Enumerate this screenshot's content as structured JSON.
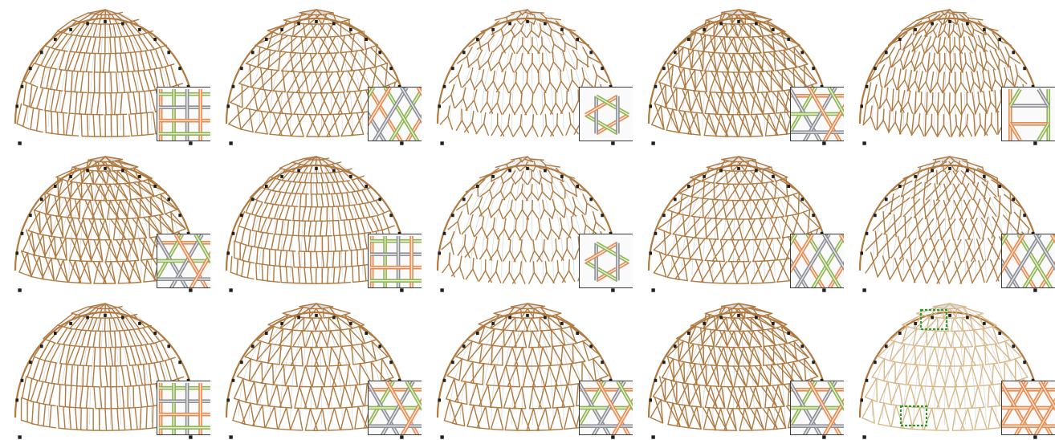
{
  "figure": {
    "rows": 3,
    "cols": 5,
    "panels": [
      {
        "id": "r1c1",
        "pattern": "basket"
      },
      {
        "id": "r1c2",
        "pattern": "pinwheel"
      },
      {
        "id": "r1c3",
        "pattern": "hexstar"
      },
      {
        "id": "r1c4",
        "pattern": "tri-weave"
      },
      {
        "id": "r1c5",
        "pattern": "hexagon"
      },
      {
        "id": "r2c1",
        "pattern": "tri-weave"
      },
      {
        "id": "r2c2",
        "pattern": "basket-dense"
      },
      {
        "id": "r2c3",
        "pattern": "hexstar"
      },
      {
        "id": "r2c4",
        "pattern": "pinwheel"
      },
      {
        "id": "r2c5",
        "pattern": "pinwheel-open"
      },
      {
        "id": "r3c1",
        "pattern": "basket"
      },
      {
        "id": "r3c2",
        "pattern": "triangle"
      },
      {
        "id": "r3c3",
        "pattern": "triangle"
      },
      {
        "id": "r3c4",
        "pattern": "tri-weave"
      },
      {
        "id": "r3c5",
        "pattern": "triangle-highlight",
        "highlight": true
      }
    ]
  },
  "colors": {
    "rod": "#b07a40",
    "rod_light": "#d9b98a",
    "ghost": "#d7dade",
    "support": "#1e1e1e",
    "inset_border": "#3a3a3a",
    "inset_orange": "#ea8a4e",
    "inset_green": "#8fb552",
    "inset_grey": "#8e9098",
    "highlight_box": "#2c9a2c"
  }
}
